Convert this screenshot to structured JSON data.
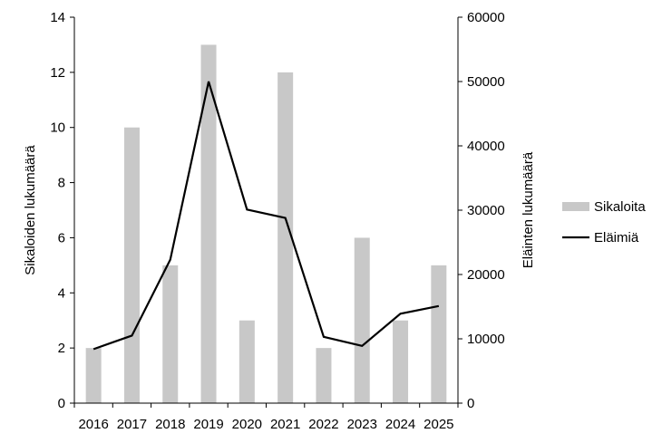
{
  "chart_data": {
    "type": "bar",
    "categories": [
      "2016",
      "2017",
      "2018",
      "2019",
      "2020",
      "2021",
      "2022",
      "2023",
      "2024",
      "2025"
    ],
    "series": [
      {
        "name": "Sikaloita",
        "type": "bar",
        "axis": "left",
        "color": "#c8c8c8",
        "values": [
          2,
          10,
          5,
          13,
          3,
          12,
          2,
          6,
          3,
          5
        ]
      },
      {
        "name": "Eläimiä",
        "type": "line",
        "axis": "right",
        "color": "#000000",
        "values": [
          8400,
          10500,
          22300,
          50000,
          30100,
          28800,
          10300,
          8900,
          13900,
          15100
        ]
      }
    ],
    "ylabel": "Sikaloiden lukumäärä",
    "y2label": "Eläinten lukumäärä",
    "ylim": [
      0,
      14
    ],
    "yticks": [
      "0",
      "2",
      "4",
      "6",
      "8",
      "10",
      "12",
      "14"
    ],
    "y2lim": [
      0,
      60000
    ],
    "y2ticks": [
      "0",
      "10000",
      "20000",
      "30000",
      "40000",
      "50000",
      "60000"
    ],
    "grid": false,
    "legend_position": "right"
  }
}
